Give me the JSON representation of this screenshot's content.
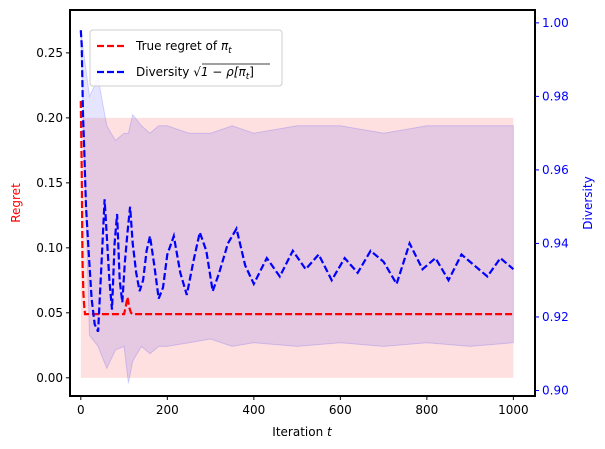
{
  "chart_data": {
    "type": "line",
    "xlabel": "Iteration t",
    "xlabel_parts": {
      "main": "Iteration ",
      "var": "t"
    },
    "ylabel_left": "Regret",
    "ylabel_right": "Diversity",
    "xlim": [
      -25,
      1050
    ],
    "ylim_left": [
      -0.014,
      0.283
    ],
    "ylim_right": [
      0.8985,
      1.0035
    ],
    "x_ticks": [
      0,
      200,
      400,
      600,
      800,
      1000
    ],
    "x_tick_labels": [
      "0",
      "200",
      "400",
      "600",
      "800",
      "1000"
    ],
    "y_left_ticks": [
      0.0,
      0.05,
      0.1,
      0.15,
      0.2,
      0.25
    ],
    "y_left_tick_labels": [
      "0.00",
      "0.05",
      "0.10",
      "0.15",
      "0.20",
      "0.25"
    ],
    "y_right_ticks": [
      0.9,
      0.92,
      0.94,
      0.96,
      0.98,
      1.0
    ],
    "y_right_tick_labels": [
      "0.90",
      "0.92",
      "0.94",
      "0.96",
      "0.98",
      "1.00"
    ],
    "legend_position": "upper-left",
    "series": [
      {
        "name": "True regret of π_t",
        "legend_parts": {
          "main": "True regret of ",
          "math": "π",
          "sub": "t"
        },
        "axis": "left",
        "color": "#ff0000",
        "style": "dashed",
        "x": [
          0,
          2,
          4,
          6,
          8,
          10,
          14,
          20,
          40,
          80,
          100,
          104,
          108,
          112,
          116,
          120,
          200,
          400,
          600,
          800,
          1000
        ],
        "values": [
          0.213,
          0.16,
          0.09,
          0.065,
          0.054,
          0.049,
          0.049,
          0.049,
          0.049,
          0.049,
          0.049,
          0.055,
          0.062,
          0.054,
          0.05,
          0.049,
          0.049,
          0.049,
          0.049,
          0.049,
          0.049
        ],
        "band": {
          "x_start": 0,
          "x_end": 1000,
          "lower": 0.0,
          "upper": 0.2,
          "color": "#ff0000"
        }
      },
      {
        "name": "Diversity √(1 − ρ[π_t])",
        "legend_parts": {
          "main": "Diversity ",
          "math": "√1 − ρ[π",
          "sub": "t",
          "end": "]"
        },
        "axis": "right",
        "color": "#0000ff",
        "style": "dashed",
        "x": [
          0,
          2,
          5,
          8,
          12,
          18,
          25,
          32,
          40,
          48,
          55,
          60,
          66,
          72,
          78,
          84,
          90,
          96,
          102,
          108,
          114,
          120,
          128,
          136,
          144,
          152,
          160,
          170,
          180,
          190,
          200,
          215,
          230,
          245,
          260,
          275,
          290,
          305,
          320,
          340,
          360,
          380,
          400,
          430,
          460,
          490,
          520,
          550,
          580,
          610,
          640,
          670,
          700,
          730,
          760,
          790,
          820,
          850,
          880,
          910,
          940,
          970,
          1000
        ],
        "values": [
          0.998,
          0.994,
          0.975,
          0.965,
          0.95,
          0.938,
          0.925,
          0.918,
          0.916,
          0.935,
          0.952,
          0.942,
          0.93,
          0.922,
          0.94,
          0.948,
          0.93,
          0.924,
          0.935,
          0.943,
          0.95,
          0.94,
          0.932,
          0.927,
          0.93,
          0.938,
          0.942,
          0.934,
          0.925,
          0.928,
          0.937,
          0.942,
          0.932,
          0.926,
          0.935,
          0.943,
          0.938,
          0.927,
          0.932,
          0.94,
          0.944,
          0.934,
          0.929,
          0.936,
          0.931,
          0.938,
          0.933,
          0.937,
          0.93,
          0.936,
          0.932,
          0.938,
          0.935,
          0.929,
          0.94,
          0.933,
          0.936,
          0.93,
          0.937,
          0.934,
          0.931,
          0.936,
          0.933
        ],
        "band": {
          "x": [
            0,
            20,
            40,
            60,
            80,
            100,
            110,
            120,
            140,
            160,
            180,
            200,
            250,
            300,
            350,
            400,
            500,
            600,
            700,
            800,
            900,
            1000
          ],
          "lower": [
            0.998,
            0.915,
            0.912,
            0.906,
            0.911,
            0.912,
            0.902,
            0.908,
            0.912,
            0.91,
            0.912,
            0.912,
            0.913,
            0.914,
            0.912,
            0.913,
            0.912,
            0.913,
            0.912,
            0.913,
            0.912,
            0.913
          ],
          "upper": [
            0.998,
            0.98,
            0.985,
            0.972,
            0.968,
            0.97,
            0.97,
            0.975,
            0.972,
            0.97,
            0.972,
            0.972,
            0.97,
            0.97,
            0.972,
            0.97,
            0.972,
            0.972,
            0.97,
            0.972,
            0.972,
            0.972
          ],
          "color": "#0000ff"
        }
      }
    ]
  }
}
